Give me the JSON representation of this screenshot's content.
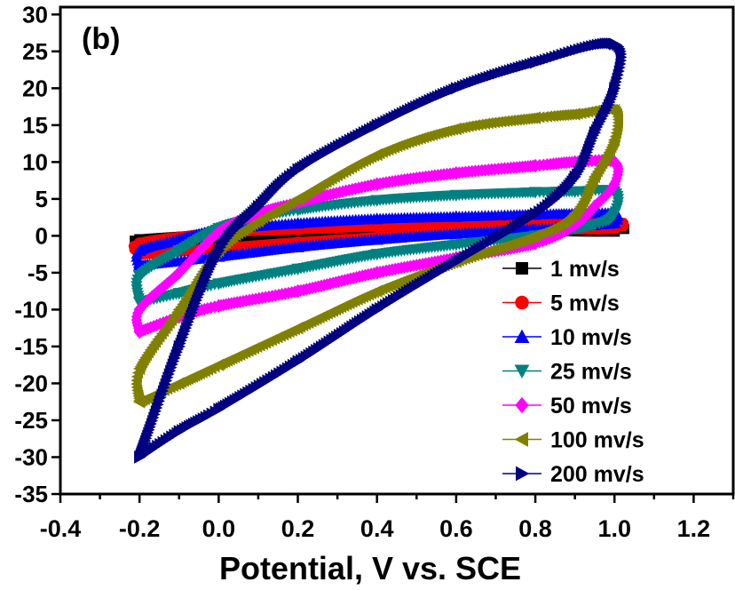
{
  "chart_data": {
    "type": "scatter",
    "panel_label": "(b)",
    "title": "",
    "xlabel": "Potential, V vs. SCE",
    "ylabel": "",
    "xlim": [
      -0.4,
      1.3
    ],
    "ylim": [
      -35,
      31
    ],
    "xticks": [
      "-0.4",
      "-0.2",
      "0.0",
      "0.2",
      "0.4",
      "0.6",
      "0.8",
      "1.0",
      "1.2"
    ],
    "yticks": [
      "30",
      "25",
      "20",
      "15",
      "10",
      "5",
      "0",
      "-5",
      "-10",
      "-15",
      "-20",
      "-25",
      "-30",
      "-35"
    ],
    "grid": false,
    "legend_position": "bottom-right",
    "series": [
      {
        "name": "1 mv/s",
        "color": "#000000",
        "marker": "square",
        "x": [
          -0.2,
          0.0,
          0.2,
          0.4,
          0.6,
          0.8,
          1.0,
          1.0,
          0.8,
          0.6,
          0.4,
          0.2,
          0.0,
          -0.2,
          -0.2
        ],
        "y": [
          -0.7,
          -0.5,
          -0.2,
          0.1,
          0.4,
          0.6,
          0.6,
          1.2,
          1.1,
          0.9,
          0.7,
          0.5,
          0.2,
          -0.5,
          -0.7
        ]
      },
      {
        "name": "5 mv/s",
        "color": "#ff0000",
        "marker": "circle",
        "x": [
          -0.2,
          0.0,
          0.2,
          0.4,
          0.6,
          0.8,
          1.0,
          1.0,
          0.8,
          0.6,
          0.4,
          0.2,
          0.0,
          -0.2,
          -0.2
        ],
        "y": [
          -2.5,
          -1.7,
          -0.9,
          -0.2,
          0.5,
          0.9,
          1.0,
          2.0,
          1.8,
          1.6,
          1.3,
          0.9,
          0.4,
          -1.0,
          -2.5
        ]
      },
      {
        "name": "10 mv/s",
        "color": "#0000ff",
        "marker": "triangle-up",
        "x": [
          -0.2,
          0.0,
          0.2,
          0.4,
          0.6,
          0.8,
          0.95,
          1.0,
          1.0,
          0.9,
          0.8,
          0.6,
          0.4,
          0.2,
          0.0,
          -0.1,
          -0.2,
          -0.2
        ],
        "y": [
          -4.0,
          -2.8,
          -1.5,
          -0.5,
          0.3,
          0.9,
          1.5,
          1.8,
          3.0,
          3.0,
          2.9,
          2.6,
          2.3,
          1.7,
          0.8,
          -0.5,
          -2.0,
          -4.0
        ]
      },
      {
        "name": "25 mv/s",
        "color": "#008080",
        "marker": "triangle-down",
        "x": [
          -0.2,
          -0.1,
          0.0,
          0.2,
          0.4,
          0.6,
          0.8,
          0.95,
          1.0,
          1.0,
          0.9,
          0.8,
          0.6,
          0.4,
          0.2,
          0.1,
          0.0,
          -0.1,
          -0.2,
          -0.2
        ],
        "y": [
          -9.0,
          -7.8,
          -6.5,
          -4.5,
          -2.5,
          -1.2,
          0.0,
          1.5,
          3.0,
          6.0,
          6.0,
          5.9,
          5.5,
          4.8,
          3.5,
          2.5,
          1.0,
          -2.0,
          -5.5,
          -9.0
        ]
      },
      {
        "name": "50 mv/s",
        "color": "#ff00ff",
        "marker": "diamond",
        "x": [
          -0.2,
          -0.1,
          0.0,
          0.2,
          0.4,
          0.6,
          0.8,
          0.9,
          0.95,
          1.0,
          1.0,
          0.9,
          0.8,
          0.6,
          0.4,
          0.2,
          0.1,
          0.0,
          -0.1,
          -0.2,
          -0.2
        ],
        "y": [
          -13.0,
          -11.0,
          -9.5,
          -7.5,
          -5.0,
          -3.0,
          -1.0,
          1.5,
          4.0,
          7.0,
          10.0,
          10.0,
          9.5,
          8.5,
          7.0,
          4.5,
          3.0,
          0.5,
          -5.0,
          -10.0,
          -13.0
        ]
      },
      {
        "name": "100 mv/s",
        "color": "#808000",
        "marker": "triangle-left",
        "x": [
          -0.2,
          -0.1,
          0.0,
          0.2,
          0.4,
          0.6,
          0.8,
          0.9,
          0.95,
          1.0,
          1.0,
          0.9,
          0.8,
          0.6,
          0.4,
          0.2,
          0.1,
          0.0,
          -0.1,
          -0.2,
          -0.2
        ],
        "y": [
          -22.5,
          -20.0,
          -17.5,
          -12.5,
          -7.5,
          -3.5,
          0.0,
          3.0,
          8.0,
          13.0,
          17.0,
          16.5,
          16.0,
          14.5,
          11.0,
          5.0,
          2.0,
          -2.0,
          -10.0,
          -18.0,
          -22.5
        ]
      },
      {
        "name": "200 mv/s",
        "color": "#000080",
        "marker": "triangle-right",
        "x": [
          -0.2,
          -0.1,
          0.0,
          0.2,
          0.4,
          0.6,
          0.8,
          0.9,
          0.95,
          1.0,
          1.0,
          0.8,
          0.6,
          0.4,
          0.2,
          0.1,
          0.0,
          -0.1,
          -0.2
        ],
        "y": [
          -30.0,
          -26.5,
          -23.5,
          -17.0,
          -10.0,
          -3.5,
          3.0,
          8.0,
          14.0,
          20.0,
          26.0,
          23.5,
          20.0,
          15.0,
          9.0,
          4.0,
          -2.0,
          -15.0,
          -30.0
        ]
      }
    ]
  }
}
